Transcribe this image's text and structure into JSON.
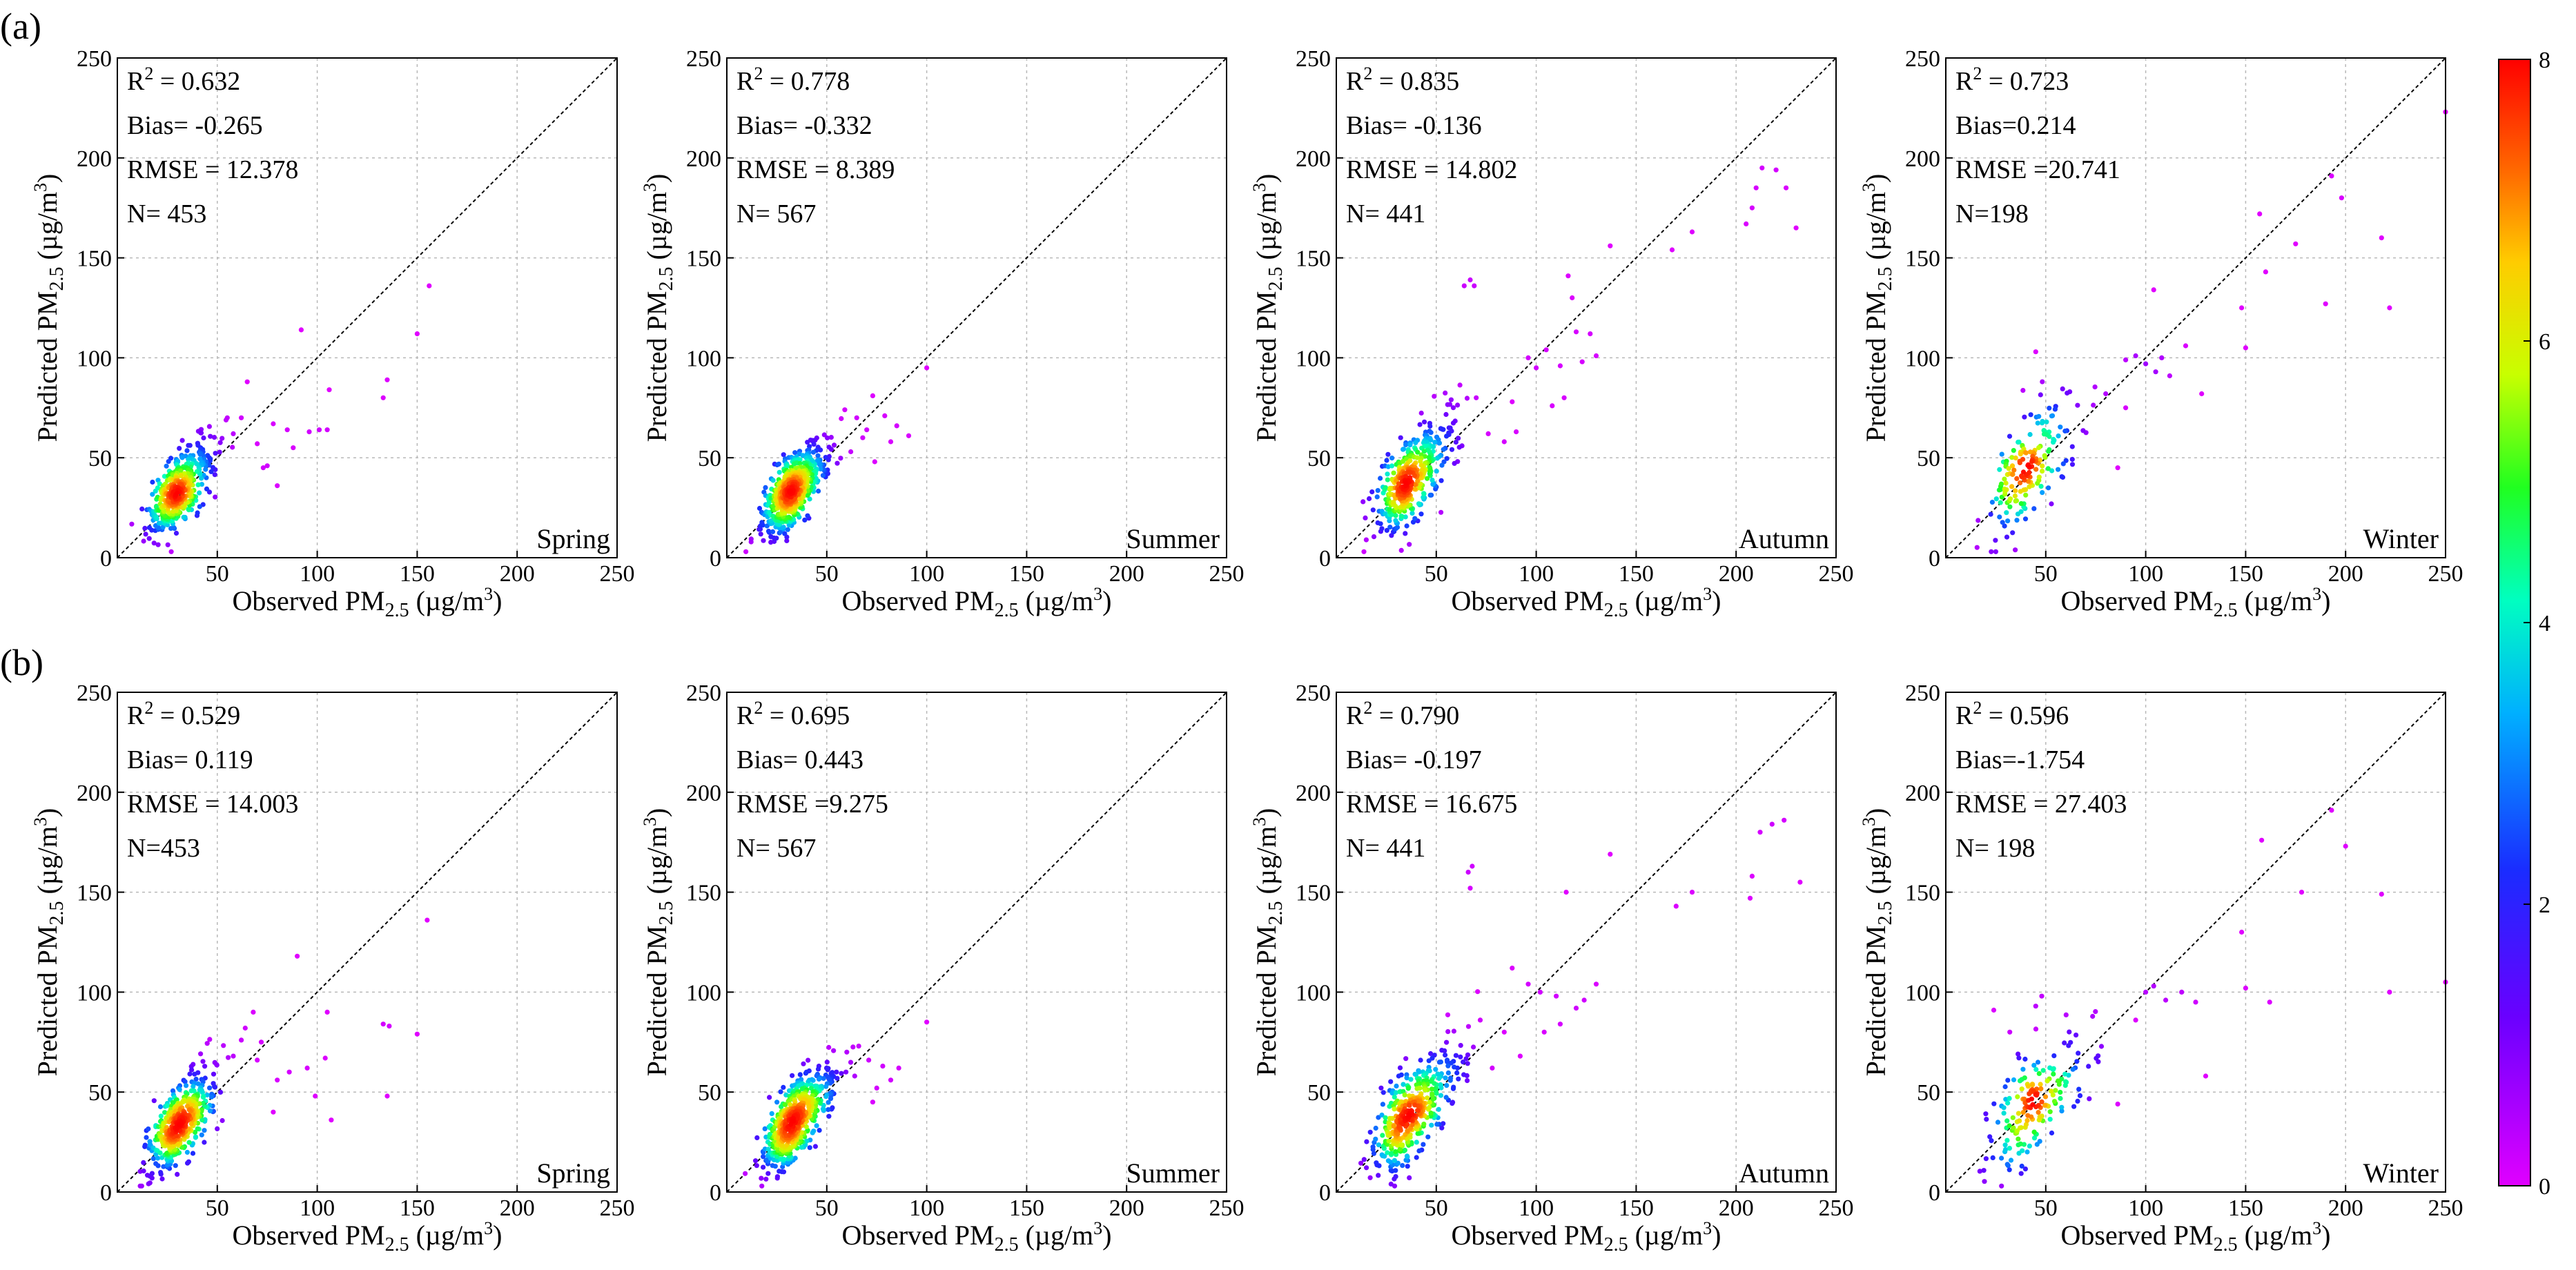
{
  "figure": {
    "row_labels": [
      "(a)",
      "(b)"
    ],
    "colorbar": {
      "min": 0,
      "max": 8,
      "ticks": [
        "0",
        "2",
        "4",
        "6",
        "8"
      ],
      "label": ""
    },
    "axis_text": {
      "x_main": "Observed PM",
      "y_main": "Predicted PM",
      "sub": "2.5",
      "unit_pre": " (µg/m",
      "unit_sup": "3",
      "unit_post": ")"
    }
  },
  "chart_data": [
    {
      "type": "scatter",
      "row": "a",
      "season": "Spring",
      "r2": "0.632",
      "bias": "Bias= -0.265",
      "rmse": "RMSE = 12.378",
      "n": "N= 453",
      "xlim": [
        0,
        250
      ],
      "ylim": [
        0,
        250
      ],
      "ticks": [
        0,
        50,
        100,
        150,
        200,
        250
      ],
      "reference_line": "1:1",
      "density_center": [
        25,
        28
      ],
      "spread": 9,
      "count": 453,
      "outliers": [
        [
          92,
          114
        ],
        [
          106,
          84
        ],
        [
          105,
          64
        ],
        [
          133,
          80
        ],
        [
          135,
          89
        ],
        [
          150,
          112
        ],
        [
          156,
          136
        ],
        [
          62,
          70
        ],
        [
          70,
          57
        ],
        [
          78,
          67
        ],
        [
          75,
          46
        ],
        [
          80,
          36
        ],
        [
          85,
          64
        ],
        [
          96,
          63
        ],
        [
          65,
          88
        ],
        [
          55,
          70
        ],
        [
          88,
          55
        ],
        [
          101,
          64
        ],
        [
          73,
          45
        ],
        [
          58,
          62
        ]
      ]
    },
    {
      "type": "scatter",
      "row": "a",
      "season": "Summer",
      "r2": "0.778",
      "bias": "Bias= -0.332",
      "rmse": "RMSE = 8.389",
      "n": "N= 567",
      "xlim": [
        0,
        250
      ],
      "ylim": [
        0,
        250
      ],
      "ticks": [
        0,
        50,
        100,
        150,
        200,
        250
      ],
      "reference_line": "1:1",
      "density_center": [
        27,
        28
      ],
      "spread": 9,
      "count": 567,
      "outliers": [
        [
          100,
          95
        ],
        [
          79,
          71
        ],
        [
          73,
          81
        ],
        [
          68,
          60
        ],
        [
          82,
          58
        ],
        [
          74,
          48
        ],
        [
          65,
          70
        ],
        [
          62,
          53
        ],
        [
          59,
          74
        ],
        [
          85,
          66
        ],
        [
          91,
          61
        ],
        [
          70,
          64
        ]
      ]
    },
    {
      "type": "scatter",
      "row": "a",
      "season": "Autumn",
      "r2": "0.835",
      "bias": "Bias= -0.136",
      "rmse": "RMSE = 14.802",
      "n": "N= 441",
      "xlim": [
        0,
        250
      ],
      "ylim": [
        0,
        250
      ],
      "ticks": [
        0,
        50,
        100,
        150,
        200,
        250
      ],
      "reference_line": "1:1",
      "density_center": [
        30,
        32
      ],
      "spread": 11,
      "count": 441,
      "outliers": [
        [
          64,
          136
        ],
        [
          67,
          139
        ],
        [
          69,
          136
        ],
        [
          116,
          141
        ],
        [
          118,
          130
        ],
        [
          137,
          156
        ],
        [
          127,
          112
        ],
        [
          168,
          154
        ],
        [
          178,
          163
        ],
        [
          205,
          167
        ],
        [
          208,
          175
        ],
        [
          210,
          185
        ],
        [
          213,
          195
        ],
        [
          220,
          194
        ],
        [
          225,
          185
        ],
        [
          230,
          165
        ],
        [
          96,
          100
        ],
        [
          100,
          95
        ],
        [
          105,
          104
        ],
        [
          112,
          96
        ],
        [
          120,
          113
        ],
        [
          130,
          101
        ],
        [
          88,
          78
        ],
        [
          76,
          62
        ],
        [
          84,
          58
        ],
        [
          90,
          63
        ],
        [
          70,
          80
        ],
        [
          108,
          76
        ],
        [
          114,
          80
        ],
        [
          123,
          98
        ]
      ]
    },
    {
      "type": "scatter",
      "row": "a",
      "season": "Winter",
      "r2": "0.723",
      "bias": "Bias=0.214",
      "rmse": "RMSE =20.741",
      "n": "N=198",
      "xlim": [
        0,
        250
      ],
      "ylim": [
        0,
        250
      ],
      "ticks": [
        0,
        50,
        100,
        150,
        200,
        250
      ],
      "reference_line": "1:1",
      "density_center": [
        32,
        34
      ],
      "spread": 14,
      "count": 198,
      "outliers": [
        [
          45,
          103
        ],
        [
          62,
          83
        ],
        [
          100,
          97
        ],
        [
          104,
          134
        ],
        [
          108,
          100
        ],
        [
          112,
          91
        ],
        [
          120,
          106
        ],
        [
          128,
          82
        ],
        [
          148,
          125
        ],
        [
          150,
          105
        ],
        [
          157,
          172
        ],
        [
          160,
          143
        ],
        [
          175,
          157
        ],
        [
          190,
          127
        ],
        [
          193,
          191
        ],
        [
          198,
          180
        ],
        [
          218,
          160
        ],
        [
          222,
          125
        ],
        [
          250,
          223
        ],
        [
          86,
          45
        ],
        [
          95,
          101
        ],
        [
          105,
          93
        ],
        [
          90,
          75
        ],
        [
          80,
          82
        ]
      ]
    },
    {
      "type": "scatter",
      "row": "b",
      "season": "Spring",
      "r2": "0.529",
      "bias": "Bias= 0.119",
      "rmse": "RMSE = 14.003",
      "n": "N=453",
      "xlim": [
        0,
        250
      ],
      "ylim": [
        0,
        250
      ],
      "ticks": [
        0,
        50,
        100,
        150,
        200,
        250
      ],
      "reference_line": "1:1",
      "density_center": [
        25,
        29
      ],
      "spread": 10,
      "count": 453,
      "outliers": [
        [
          90,
          118
        ],
        [
          105,
          90
        ],
        [
          104,
          67
        ],
        [
          107,
          36
        ],
        [
          133,
          84
        ],
        [
          136,
          83
        ],
        [
          135,
          48
        ],
        [
          150,
          79
        ],
        [
          155,
          136
        ],
        [
          68,
          90
        ],
        [
          72,
          75
        ],
        [
          80,
          56
        ],
        [
          78,
          40
        ],
        [
          86,
          60
        ],
        [
          95,
          62
        ],
        [
          62,
          76
        ],
        [
          58,
          68
        ],
        [
          99,
          48
        ],
        [
          70,
          66
        ],
        [
          64,
          82
        ]
      ]
    },
    {
      "type": "scatter",
      "row": "b",
      "season": "Summer",
      "r2": "0.695",
      "bias": "Bias= 0.443",
      "rmse": "RMSE =9.275",
      "n": "N= 567",
      "xlim": [
        0,
        250
      ],
      "ylim": [
        0,
        250
      ],
      "ticks": [
        0,
        50,
        100,
        150,
        200,
        250
      ],
      "reference_line": "1:1",
      "density_center": [
        28,
        29
      ],
      "spread": 10,
      "count": 567,
      "outliers": [
        [
          100,
          85
        ],
        [
          78,
          63
        ],
        [
          71,
          66
        ],
        [
          66,
          73
        ],
        [
          82,
          56
        ],
        [
          73,
          45
        ],
        [
          64,
          58
        ],
        [
          60,
          70
        ],
        [
          86,
          62
        ],
        [
          75,
          52
        ]
      ]
    },
    {
      "type": "scatter",
      "row": "b",
      "season": "Autumn",
      "r2": "0.790",
      "bias": "Bias= -0.197",
      "rmse": "RMSE = 16.675",
      "n": "N= 441",
      "xlim": [
        0,
        250
      ],
      "ylim": [
        0,
        250
      ],
      "ticks": [
        0,
        50,
        100,
        150,
        200,
        250
      ],
      "reference_line": "1:1",
      "density_center": [
        30,
        32
      ],
      "spread": 12,
      "count": 441,
      "outliers": [
        [
          66,
          160
        ],
        [
          68,
          163
        ],
        [
          67,
          152
        ],
        [
          115,
          150
        ],
        [
          137,
          169
        ],
        [
          170,
          143
        ],
        [
          178,
          150
        ],
        [
          207,
          147
        ],
        [
          208,
          158
        ],
        [
          212,
          180
        ],
        [
          218,
          184
        ],
        [
          224,
          186
        ],
        [
          232,
          155
        ],
        [
          88,
          112
        ],
        [
          96,
          104
        ],
        [
          102,
          100
        ],
        [
          110,
          98
        ],
        [
          120,
          92
        ],
        [
          130,
          104
        ],
        [
          84,
          80
        ],
        [
          78,
          62
        ],
        [
          92,
          68
        ],
        [
          72,
          86
        ],
        [
          104,
          80
        ],
        [
          112,
          84
        ],
        [
          124,
          96
        ]
      ]
    },
    {
      "type": "scatter",
      "row": "b",
      "season": "Winter",
      "r2": "0.596",
      "bias": "Bias=-1.754",
      "rmse": "RMSE = 27.403",
      "n": "N= 198",
      "xlim": [
        0,
        250
      ],
      "ylim": [
        0,
        250
      ],
      "ticks": [
        0,
        50,
        100,
        150,
        200,
        250
      ],
      "reference_line": "1:1",
      "density_center": [
        33,
        35
      ],
      "spread": 14,
      "count": 198,
      "outliers": [
        [
          24,
          91
        ],
        [
          32,
          80
        ],
        [
          45,
          93
        ],
        [
          48,
          98
        ],
        [
          100,
          100
        ],
        [
          104,
          103
        ],
        [
          110,
          96
        ],
        [
          118,
          100
        ],
        [
          125,
          95
        ],
        [
          130,
          58
        ],
        [
          148,
          130
        ],
        [
          150,
          102
        ],
        [
          158,
          176
        ],
        [
          162,
          95
        ],
        [
          178,
          150
        ],
        [
          193,
          191
        ],
        [
          200,
          173
        ],
        [
          218,
          149
        ],
        [
          222,
          100
        ],
        [
          250,
          105
        ],
        [
          86,
          44
        ],
        [
          95,
          86
        ]
      ]
    }
  ]
}
